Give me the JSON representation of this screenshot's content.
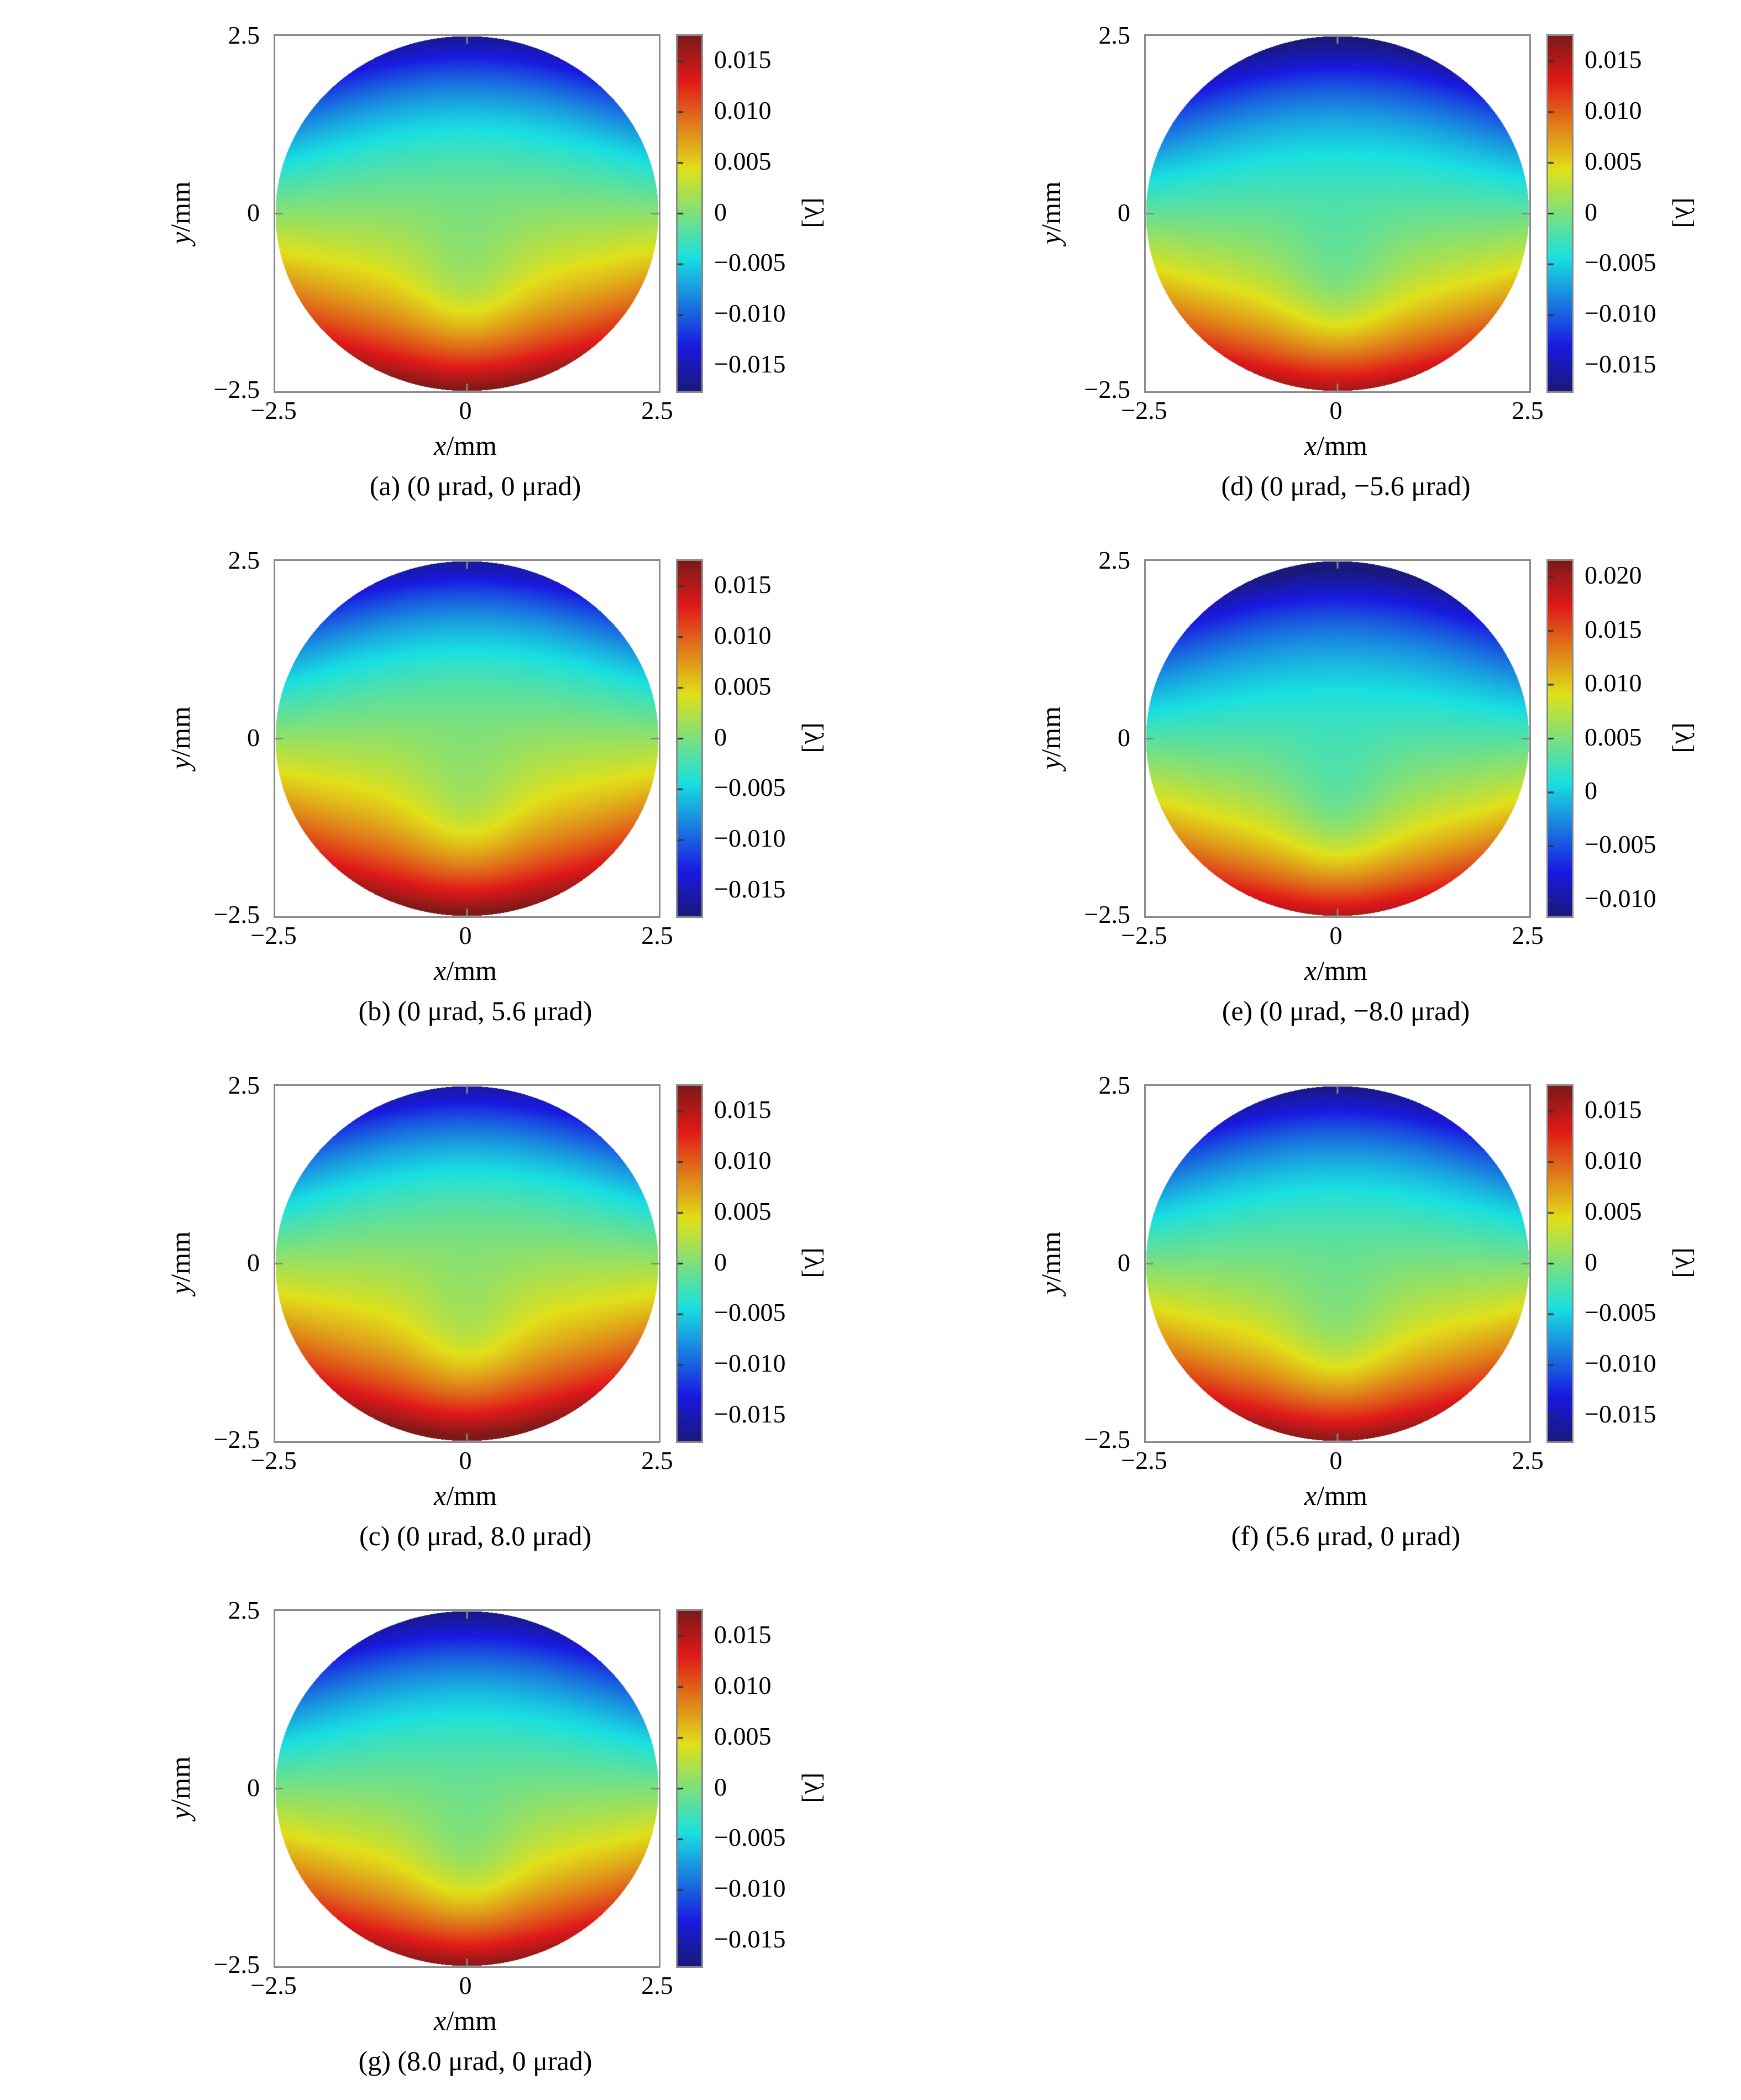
{
  "chart_data": {
    "type": "heatmap",
    "title": "",
    "description": "Seven circular wavefront phase maps (jet colormap, coma-like aberration pattern: negative/blue at top, green at center, positive/red at bottom) for different tip-tilt settings.",
    "colormap": "jet",
    "colorbar_label": "[λ]",
    "axes": {
      "xlabel_var": "x",
      "xlabel_unit": "/mm",
      "ylabel_var": "y",
      "ylabel_unit": "/mm",
      "xticks": [
        "−2.5",
        "0",
        "2.5"
      ],
      "yticks": [
        "2.5",
        "0",
        "−2.5"
      ],
      "xlim": [
        -2.5,
        2.5
      ],
      "ylim": [
        -2.5,
        2.5
      ]
    },
    "model": "w(u,v) = -v*(1+u^2+v^2)/2 - 0.08*exp(-(u/0.28)^2-((v+0.45)/0.4)^2); color = jet(center_frac + 0.5*w), disk u^2+v^2 <= 1",
    "panels": [
      {
        "id": "a",
        "caption": "(a) (0 μrad, 0 μrad)",
        "vmin": -0.0175,
        "vmax": 0.0175,
        "center_frac": 0.52,
        "cb_ticks": [
          {
            "label": "0.015",
            "value": 0.015
          },
          {
            "label": "0.010",
            "value": 0.01
          },
          {
            "label": "0.005",
            "value": 0.005
          },
          {
            "label": "0",
            "value": 0
          },
          {
            "label": "−0.005",
            "value": -0.005
          },
          {
            "label": "−0.010",
            "value": -0.01
          },
          {
            "label": "−0.015",
            "value": -0.015
          }
        ]
      },
      {
        "id": "b",
        "caption": "(b) (0 μrad, 5.6 μrad)",
        "vmin": -0.0175,
        "vmax": 0.0175,
        "center_frac": 0.53,
        "cb_ticks": [
          {
            "label": "0.015",
            "value": 0.015
          },
          {
            "label": "0.010",
            "value": 0.01
          },
          {
            "label": "0.005",
            "value": 0.005
          },
          {
            "label": "0",
            "value": 0
          },
          {
            "label": "−0.005",
            "value": -0.005
          },
          {
            "label": "−0.010",
            "value": -0.01
          },
          {
            "label": "−0.015",
            "value": -0.015
          }
        ]
      },
      {
        "id": "c",
        "caption": "(c) (0 μrad, 8.0 μrad)",
        "vmin": -0.0175,
        "vmax": 0.0175,
        "center_frac": 0.54,
        "cb_ticks": [
          {
            "label": "0.015",
            "value": 0.015
          },
          {
            "label": "0.010",
            "value": 0.01
          },
          {
            "label": "0.005",
            "value": 0.005
          },
          {
            "label": "0",
            "value": 0
          },
          {
            "label": "−0.005",
            "value": -0.005
          },
          {
            "label": "−0.010",
            "value": -0.01
          },
          {
            "label": "−0.015",
            "value": -0.015
          }
        ]
      },
      {
        "id": "d",
        "caption": "(d) (0 μrad, −5.6 μrad)",
        "vmin": -0.0175,
        "vmax": 0.0175,
        "center_frac": 0.47,
        "cb_ticks": [
          {
            "label": "0.015",
            "value": 0.015
          },
          {
            "label": "0.010",
            "value": 0.01
          },
          {
            "label": "0.005",
            "value": 0.005
          },
          {
            "label": "0",
            "value": 0
          },
          {
            "label": "−0.005",
            "value": -0.005
          },
          {
            "label": "−0.010",
            "value": -0.01
          },
          {
            "label": "−0.015",
            "value": -0.015
          }
        ]
      },
      {
        "id": "e",
        "caption": "(e) (0 μrad, −8.0 μrad)",
        "vmin": -0.0115,
        "vmax": 0.0215,
        "center_frac": 0.45,
        "cb_ticks": [
          {
            "label": "0.020",
            "value": 0.02
          },
          {
            "label": "0.015",
            "value": 0.015
          },
          {
            "label": "0.010",
            "value": 0.01
          },
          {
            "label": "0.005",
            "value": 0.005
          },
          {
            "label": "0",
            "value": 0
          },
          {
            "label": "−0.005",
            "value": -0.005
          },
          {
            "label": "−0.010",
            "value": -0.01
          }
        ]
      },
      {
        "id": "f",
        "caption": "(f) (5.6 μrad, 0 μrad)",
        "vmin": -0.0175,
        "vmax": 0.0175,
        "center_frac": 0.5,
        "cb_ticks": [
          {
            "label": "0.015",
            "value": 0.015
          },
          {
            "label": "0.010",
            "value": 0.01
          },
          {
            "label": "0.005",
            "value": 0.005
          },
          {
            "label": "0",
            "value": 0
          },
          {
            "label": "−0.005",
            "value": -0.005
          },
          {
            "label": "−0.010",
            "value": -0.01
          },
          {
            "label": "−0.015",
            "value": -0.015
          }
        ]
      },
      {
        "id": "g",
        "caption": "(g) (8.0 μrad, 0 μrad)",
        "vmin": -0.0175,
        "vmax": 0.0175,
        "center_frac": 0.5,
        "cb_ticks": [
          {
            "label": "0.015",
            "value": 0.015
          },
          {
            "label": "0.010",
            "value": 0.01
          },
          {
            "label": "0.005",
            "value": 0.005
          },
          {
            "label": "0",
            "value": 0
          },
          {
            "label": "−0.005",
            "value": -0.005
          },
          {
            "label": "−0.010",
            "value": -0.01
          },
          {
            "label": "−0.015",
            "value": -0.015
          }
        ]
      }
    ]
  }
}
